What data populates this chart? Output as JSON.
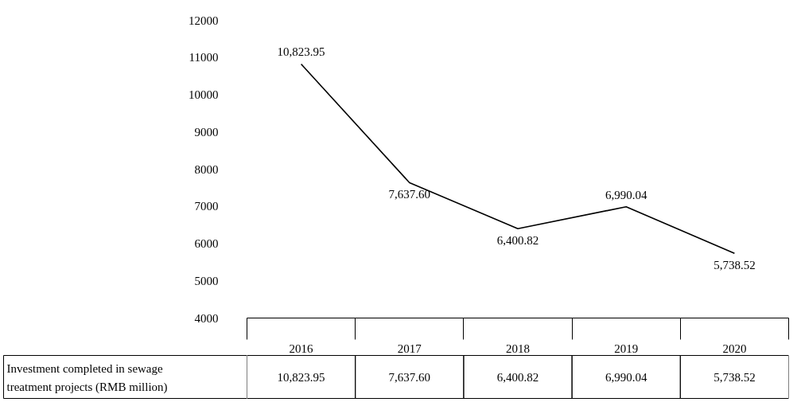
{
  "chart_data": {
    "type": "line",
    "categories": [
      "2016",
      "2017",
      "2018",
      "2019",
      "2020"
    ],
    "series": [
      {
        "name": "Investment completed in sewage treatment projects (RMB million)",
        "color": "#000000",
        "values": [
          10823.95,
          7637.6,
          6400.82,
          6990.04,
          5738.52
        ]
      }
    ],
    "ylim": [
      4000,
      12000
    ],
    "yticks": [
      4000,
      5000,
      6000,
      7000,
      8000,
      9000,
      10000,
      11000,
      12000
    ],
    "value_labels": [
      "10,823.95",
      "7,637.60",
      "6,400.82",
      "6,990.04",
      "5,738.52"
    ],
    "grid": false,
    "marker": "none",
    "line_style": "solid"
  }
}
